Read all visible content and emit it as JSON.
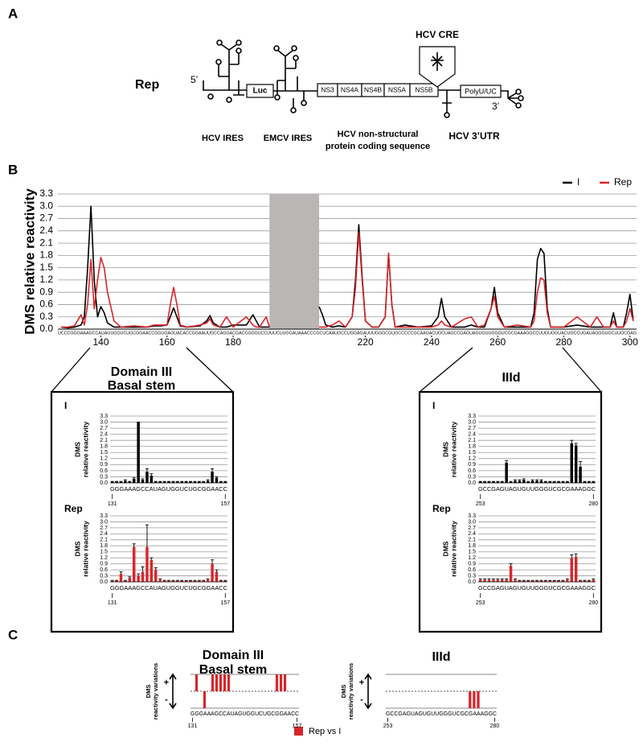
{
  "panel_labels": [
    "A",
    "B",
    "C"
  ],
  "diagram": {
    "construct": "Rep",
    "five_prime": "5’",
    "luc": "Luc",
    "ns": [
      "NS3",
      "NS4A",
      "NS4B",
      "NS5A",
      "NS5B"
    ],
    "cre": "HCV CRE",
    "poly": "PolyU/UC",
    "three_prime": "3’",
    "hcv_ires": "HCV IRES",
    "emcv_ires": "EMCV IRES",
    "ns_lines": [
      "HCV non-structural",
      "protein coding sequence"
    ],
    "utr": "HCV 3’UTR"
  },
  "callouts": [
    [
      "Domain III",
      "Basal stem"
    ],
    [
      "IIId"
    ]
  ],
  "c_legend": {
    "name": "Rep vs I",
    "color": "#d7262b"
  },
  "chart_data": [
    {
      "type": "line",
      "y_label": "DMS relative reactivity",
      "sequence": "UCCCGGGAAAGCCAUAGUGGUCUGCGGAACCGGUGAGUACACCGGAAUUGCCAGGACGACCGGGUCCUUUCUUGGAUAAACCCGCUCAAUGCCUGGAGAUUUGGGCGUGCCCCCGCAAGACUGCUAGCCGAGUAGUGUUGGGUCGCGAAAGGCCUUGUGGUACUGCCUGAUAGGGUGCUUGCGAG",
      "x": [
        128,
        130,
        132,
        134,
        135,
        136,
        137,
        138,
        139,
        140,
        141,
        142,
        144,
        146,
        150,
        154,
        156,
        158,
        160,
        161,
        162,
        163,
        164,
        166,
        170,
        172,
        173,
        174,
        176,
        178,
        180,
        184,
        186,
        187,
        188,
        190,
        191,
        199,
        206,
        207,
        208,
        210,
        212,
        214,
        216,
        217,
        218,
        219,
        220,
        222,
        224,
        226,
        227,
        228,
        229,
        232,
        236,
        240,
        242,
        243,
        244,
        246,
        250,
        252,
        254,
        256,
        258,
        259,
        260,
        262,
        266,
        270,
        271,
        272,
        273,
        274,
        275,
        276,
        280,
        284,
        288,
        290,
        292,
        294,
        295,
        296,
        298,
        299,
        300,
        301
      ],
      "series": [
        {
          "name": "I",
          "color": "#000000",
          "values": [
            0.05,
            0.03,
            0.05,
            0.1,
            0.3,
            1.5,
            3.0,
            1.2,
            0.3,
            0.55,
            0.4,
            0.15,
            0.05,
            0.05,
            0.05,
            0.05,
            0.08,
            0.08,
            0.1,
            0.3,
            0.52,
            0.3,
            0.08,
            0.05,
            0.08,
            0.2,
            0.33,
            0.15,
            0.05,
            0.05,
            0.1,
            0.1,
            0.35,
            0.2,
            0.05,
            0.05,
            0.05,
            null,
            0.55,
            0.35,
            0.1,
            0.05,
            0.08,
            0.05,
            0.3,
            1.2,
            2.55,
            1.3,
            0.2,
            0.05,
            0.05,
            0.3,
            1.85,
            0.6,
            0.05,
            0.1,
            0.05,
            0.08,
            0.3,
            0.75,
            0.3,
            0.05,
            0.05,
            0.1,
            0.05,
            0.05,
            0.5,
            1.02,
            0.4,
            0.05,
            0.05,
            0.05,
            0.4,
            1.7,
            1.97,
            1.85,
            0.5,
            0.05,
            0.05,
            0.1,
            0.05,
            0.05,
            0.05,
            0.05,
            0.4,
            0.05,
            0.05,
            0.4,
            0.85,
            0.2
          ]
        },
        {
          "name": "Rep",
          "color": "#d7262b",
          "values": [
            0.05,
            0.05,
            0.08,
            0.35,
            0.1,
            0.6,
            1.7,
            0.5,
            1.2,
            1.75,
            1.5,
            0.9,
            0.2,
            0.05,
            0.08,
            0.05,
            0.1,
            0.1,
            0.1,
            0.6,
            1.02,
            0.6,
            0.1,
            0.05,
            0.1,
            0.15,
            0.25,
            0.1,
            0.05,
            0.3,
            0.05,
            0.3,
            0.1,
            0.05,
            0.05,
            0.3,
            0.05,
            null,
            0.05,
            0.05,
            0.05,
            0.1,
            0.2,
            0.05,
            0.3,
            1.0,
            2.35,
            1.2,
            0.2,
            0.05,
            0.05,
            0.3,
            1.85,
            0.6,
            0.05,
            0.05,
            0.05,
            0.05,
            0.1,
            0.2,
            0.1,
            0.05,
            0.25,
            0.3,
            0.05,
            0.1,
            0.5,
            0.8,
            0.3,
            0.05,
            0.1,
            0.05,
            0.2,
            0.9,
            1.25,
            1.2,
            0.4,
            0.05,
            0.05,
            0.3,
            0.05,
            0.3,
            0.05,
            0.05,
            0.2,
            0.05,
            0.05,
            0.2,
            0.5,
            0.2
          ]
        }
      ],
      "shaded": [
        191,
        206
      ],
      "shade_color": "#bab6b6",
      "xlim": [
        127,
        302
      ],
      "xticks": [
        140,
        160,
        180,
        220,
        240,
        260,
        280,
        300
      ],
      "ylim": [
        0,
        3.3
      ],
      "yticks": [
        {
          "value": 0,
          "label": "0.0"
        },
        0.3,
        0.6,
        0.9,
        1.2,
        1.5,
        1.8,
        2.1,
        2.4,
        2.7,
        {
          "value": 3,
          "label": "3.0"
        },
        3.3
      ],
      "grid": true,
      "legend": "top-right"
    },
    {
      "type": "bar",
      "title": "I",
      "y_label": [
        "DMS",
        "relative reactivity"
      ],
      "color": "#000000",
      "sequence": "GGGAAAGCCAUAGUGGUCUGCGGAACC",
      "values": [
        0.05,
        0.05,
        0.05,
        0.1,
        0.05,
        0.2,
        3.0,
        0.15,
        0.55,
        0.35,
        0.05,
        0.05,
        0.05,
        0.05,
        0.05,
        0.05,
        0.05,
        0.05,
        0.05,
        0.05,
        0.05,
        0.05,
        0.1,
        0.55,
        0.25,
        0.05,
        0.05
      ],
      "errors": [
        0.02,
        0.02,
        0.02,
        0.05,
        0.02,
        0.05,
        0,
        0.05,
        0.15,
        0.1,
        0.02,
        0.02,
        0.02,
        0.02,
        0.02,
        0.02,
        0.02,
        0.02,
        0.02,
        0.02,
        0.02,
        0.02,
        0.05,
        0.15,
        0.05,
        0.02,
        0.02
      ],
      "xlim": [
        131,
        157
      ],
      "xticks": [
        131,
        157
      ],
      "ylim": [
        0,
        3.3
      ],
      "yticks": [
        {
          "value": 0,
          "label": "0.0"
        },
        0.3,
        0.6,
        0.9,
        1.2,
        1.5,
        1.8,
        2.1,
        2.4,
        2.7,
        {
          "value": 3,
          "label": "3.0"
        },
        3.3
      ],
      "grid": true
    },
    {
      "type": "bar",
      "title": "Rep",
      "y_label": [
        "DMS",
        "relative reactivity"
      ],
      "color": "#d7262b",
      "sequence": "GGGAAAGCCAUAGUGGUCUGCGGAACC",
      "values": [
        0.05,
        0.05,
        0.4,
        0.05,
        0.2,
        1.75,
        0.3,
        0.5,
        1.75,
        1.1,
        0.6,
        0.1,
        0.05,
        0.05,
        0.05,
        0.05,
        0.05,
        0.05,
        0.05,
        0.05,
        0.05,
        0.05,
        0.1,
        0.9,
        0.5,
        0.05,
        0.05
      ],
      "errors": [
        0.02,
        0.02,
        0.1,
        0.02,
        0.05,
        0.15,
        0.1,
        0.25,
        1.1,
        0.1,
        0.1,
        0.05,
        0.02,
        0.02,
        0.02,
        0.02,
        0.02,
        0.02,
        0.02,
        0.02,
        0.02,
        0.02,
        0.05,
        0.2,
        0.1,
        0.02,
        0.02
      ],
      "xlim": [
        131,
        157
      ],
      "xticks": [
        131,
        157
      ],
      "ylim": [
        0,
        3.3
      ],
      "yticks": [
        {
          "value": 0,
          "label": "0.0"
        },
        0.3,
        0.6,
        0.9,
        1.2,
        1.5,
        1.8,
        2.1,
        2.4,
        2.7,
        {
          "value": 3,
          "label": "3.0"
        },
        3.3
      ],
      "grid": true
    },
    {
      "type": "bar",
      "title": "I",
      "y_label": [
        "DMS",
        "relative reactivity"
      ],
      "color": "#000000",
      "sequence": "GCCGAGUAGUGUUGGGUCGCGAAAGGC",
      "values": [
        0.05,
        0.05,
        0.05,
        0.05,
        0.05,
        0.05,
        1.0,
        0.05,
        0.1,
        0.1,
        0.15,
        0.05,
        0.1,
        0.1,
        0.1,
        0.05,
        0.05,
        0.05,
        0.05,
        0.05,
        0.05,
        1.95,
        1.85,
        0.8,
        0.05,
        0.05,
        0.05
      ],
      "errors": [
        0.02,
        0.02,
        0.02,
        0.02,
        0.02,
        0.02,
        0.1,
        0.02,
        0.05,
        0.05,
        0.05,
        0.02,
        0.05,
        0.05,
        0.05,
        0.02,
        0.02,
        0.02,
        0.02,
        0.02,
        0.02,
        0.15,
        0.1,
        0.25,
        0.02,
        0.02,
        0.02
      ],
      "xlim": [
        253,
        280
      ],
      "xticks": [
        253,
        280
      ],
      "ylim": [
        0,
        3.3
      ],
      "yticks": [
        {
          "value": 0,
          "label": "0.0"
        },
        0.3,
        0.6,
        0.9,
        1.2,
        1.5,
        1.8,
        2.1,
        2.4,
        2.7,
        {
          "value": 3,
          "label": "3.0"
        },
        3.3
      ],
      "grid": true
    },
    {
      "type": "bar",
      "title": "Rep",
      "y_label": [
        "DMS",
        "relative reactivity"
      ],
      "color": "#d7262b",
      "sequence": "GCCGAGUAGUGUUGGGUCGCGAAAGGC",
      "values": [
        0.1,
        0.1,
        0.1,
        0.1,
        0.1,
        0.1,
        0.1,
        0.8,
        0.1,
        0.05,
        0.05,
        0.05,
        0.05,
        0.05,
        0.05,
        0.05,
        0.05,
        0.05,
        0.05,
        0.05,
        0.1,
        1.2,
        1.25,
        0.05,
        0.05,
        0.05,
        0.1
      ],
      "errors": [
        0.05,
        0.05,
        0.05,
        0.05,
        0.05,
        0.05,
        0.05,
        0.1,
        0.05,
        0.02,
        0.02,
        0.02,
        0.02,
        0.02,
        0.02,
        0.02,
        0.02,
        0.02,
        0.02,
        0.02,
        0.05,
        0.15,
        0.15,
        0.02,
        0.02,
        0.02,
        0.05
      ],
      "xlim": [
        253,
        280
      ],
      "xticks": [
        253,
        280
      ],
      "ylim": [
        0,
        3.3
      ],
      "yticks": [
        {
          "value": 0,
          "label": "0.0"
        },
        0.3,
        0.6,
        0.9,
        1.2,
        1.5,
        1.8,
        2.1,
        2.4,
        2.7,
        {
          "value": 3,
          "label": "3.0"
        },
        3.3
      ],
      "grid": true
    },
    {
      "type": "diverging_bar",
      "title": [
        "Domain III",
        "Basal stem"
      ],
      "y_label": [
        "DMS",
        "reactivity variations"
      ],
      "markers": [
        "+",
        "-"
      ],
      "color": "#d7262b",
      "sequence": "GGGAAAGCCAUAGUGGUCUGCGGAACC",
      "values": [
        0,
        1,
        0,
        -1,
        0,
        1,
        1,
        1,
        1,
        1,
        0,
        0,
        0,
        0,
        0,
        0,
        0,
        0,
        0,
        0,
        0,
        1,
        1,
        1,
        0,
        0,
        0
      ],
      "xlim": [
        131,
        157
      ],
      "xticks": [
        131,
        157
      ],
      "ylim": [
        -1,
        1
      ]
    },
    {
      "type": "diverging_bar",
      "title": [
        "IIId"
      ],
      "y_label": [
        "DMS",
        "reactivity variations"
      ],
      "markers": [
        "+",
        "-"
      ],
      "color": "#d7262b",
      "sequence": "GCCGAGUAGUGUUGGGUCGCGAAAGGC",
      "values": [
        0,
        0,
        0,
        0,
        0,
        0,
        0,
        0,
        0,
        0,
        0,
        0,
        0,
        0,
        0,
        0,
        0,
        0,
        0,
        0,
        -1,
        -1,
        -1,
        0,
        0,
        0,
        0
      ],
      "xlim": [
        253,
        280
      ],
      "xticks": [
        253,
        280
      ],
      "ylim": [
        -1,
        1
      ]
    }
  ]
}
